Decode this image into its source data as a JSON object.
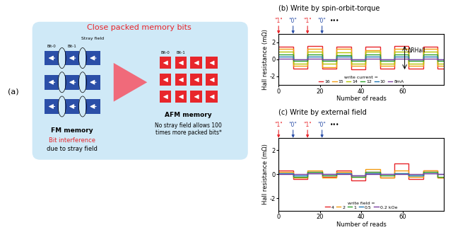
{
  "panel_a": {
    "label": "(a)",
    "title": "Close packed memory bits",
    "fm": {
      "bit_labels": [
        "Bit-0",
        "Bit-1"
      ],
      "stray_field": "Stray field",
      "name": "FM memory",
      "problem": "Bit interference",
      "cause": "due to stray field"
    },
    "afm": {
      "bit_labels": [
        "Bit-0",
        "Bit-1"
      ],
      "name": "AFM memory",
      "note": "No stray field allows 100 times more packed bits*"
    }
  },
  "chart_data": [
    {
      "type": "line",
      "title": "(b) Write by spin-orbit-torque",
      "x_label": "Number of reads",
      "y_label": "Hall resistance (mΩ)",
      "line_style": "steps",
      "x_edges": [
        0,
        7,
        14,
        21,
        28,
        35,
        42,
        49,
        56,
        63,
        70,
        77,
        80
      ],
      "series": [
        {
          "name": "16",
          "color": "#e8262b",
          "values": [
            1.5,
            -1.1,
            1.6,
            -1.1,
            1.5,
            -1.2,
            1.5,
            -1.1,
            1.6,
            -1.1,
            1.5,
            -1.1
          ]
        },
        {
          "name": "15",
          "color": "#f39c12",
          "values": [
            1.2,
            -0.8,
            1.2,
            -0.9,
            1.2,
            -0.8,
            1.1,
            -0.8,
            1.2,
            -0.8,
            1.2,
            -0.8
          ]
        },
        {
          "name": "14",
          "color": "#b5c400",
          "values": [
            0.9,
            -0.5,
            0.9,
            -0.5,
            0.8,
            -0.5,
            0.9,
            -0.5,
            0.9,
            -0.5,
            0.9,
            -0.5
          ]
        },
        {
          "name": "12",
          "color": "#2ca02c",
          "values": [
            0.6,
            -0.2,
            0.6,
            -0.2,
            0.5,
            -0.2,
            0.6,
            -0.2,
            0.6,
            -0.2,
            0.6,
            -0.2
          ]
        },
        {
          "name": "10",
          "color": "#1f77b4",
          "values": [
            0.3,
            0.0,
            0.3,
            0.0,
            0.3,
            0.0,
            0.3,
            0.0,
            0.3,
            0.0,
            0.3,
            0.0
          ]
        },
        {
          "name": "8mA",
          "color": "#7b3fa0",
          "values": [
            0.1,
            0.0,
            0.1,
            0.0,
            0.1,
            0.0,
            0.1,
            0.0,
            0.1,
            0.0,
            0.1,
            0.0
          ]
        }
      ],
      "legend_title": "write current =",
      "legend": "lower center",
      "xlim": [
        0,
        80
      ],
      "xticks": [
        0,
        20,
        40,
        60
      ],
      "ylim": [
        -3,
        3
      ],
      "yticks": [
        -2,
        0,
        2
      ],
      "write_marks": {
        "x": [
          0,
          7,
          14,
          21,
          27
        ],
        "labels": [
          "\"1\"",
          "\"0\"",
          "\"1\"",
          "\"0\"",
          "•••"
        ],
        "colors": [
          "#e8262b",
          "#2b4fa8",
          "#e8262b",
          "#2b4fa8",
          null
        ]
      },
      "annotation": {
        "text": "ΔRHall",
        "x": 61
      }
    },
    {
      "type": "line",
      "title": "(c) Write by external field",
      "x_label": "Number of reads",
      "y_label": "Hall resistance (mΩ)",
      "line_style": "steps",
      "x_edges": [
        0,
        7,
        14,
        21,
        28,
        35,
        42,
        49,
        56,
        63,
        70,
        77,
        80
      ],
      "series": [
        {
          "name": "4",
          "color": "#e8262b",
          "values": [
            0.3,
            -0.4,
            0.2,
            -0.2,
            0.3,
            -0.5,
            0.2,
            -0.3,
            0.9,
            -0.4,
            0.3,
            -0.3
          ]
        },
        {
          "name": "2",
          "color": "#f39c12",
          "values": [
            0.2,
            -0.3,
            0.3,
            -0.3,
            0.2,
            -0.2,
            0.4,
            -0.3,
            0.3,
            -0.2,
            0.3,
            -0.3
          ]
        },
        {
          "name": "1",
          "color": "#2ca02c",
          "values": [
            0.1,
            -0.2,
            0.2,
            -0.1,
            0.1,
            -0.2,
            0.2,
            -0.1,
            0.1,
            -0.1,
            0.2,
            -0.2
          ]
        },
        {
          "name": "0.5",
          "color": "#1f77b4",
          "values": [
            0.1,
            -0.1,
            0.1,
            0.0,
            0.1,
            -0.1,
            0.1,
            0.0,
            0.1,
            -0.1,
            0.1,
            0.0
          ]
        },
        {
          "name": "0.2 kOe",
          "color": "#7b3fa0",
          "values": [
            0.0,
            0.0,
            0.1,
            0.0,
            0.0,
            -0.1,
            0.0,
            0.0,
            0.0,
            0.0,
            0.1,
            0.0
          ]
        }
      ],
      "legend_title": "write field =",
      "legend": "lower center",
      "xlim": [
        0,
        80
      ],
      "xticks": [
        0,
        20,
        40,
        60
      ],
      "ylim": [
        -3,
        3
      ],
      "yticks": [
        -2,
        0,
        2
      ],
      "write_marks": {
        "x": [
          0,
          7,
          14,
          21,
          27
        ],
        "labels": [
          "\"1\"",
          "\"0\"",
          "\"1\"",
          "\"0\"",
          "•••"
        ],
        "colors": [
          "#e8262b",
          "#2b4fa8",
          "#e8262b",
          "#2b4fa8",
          null
        ]
      }
    }
  ]
}
